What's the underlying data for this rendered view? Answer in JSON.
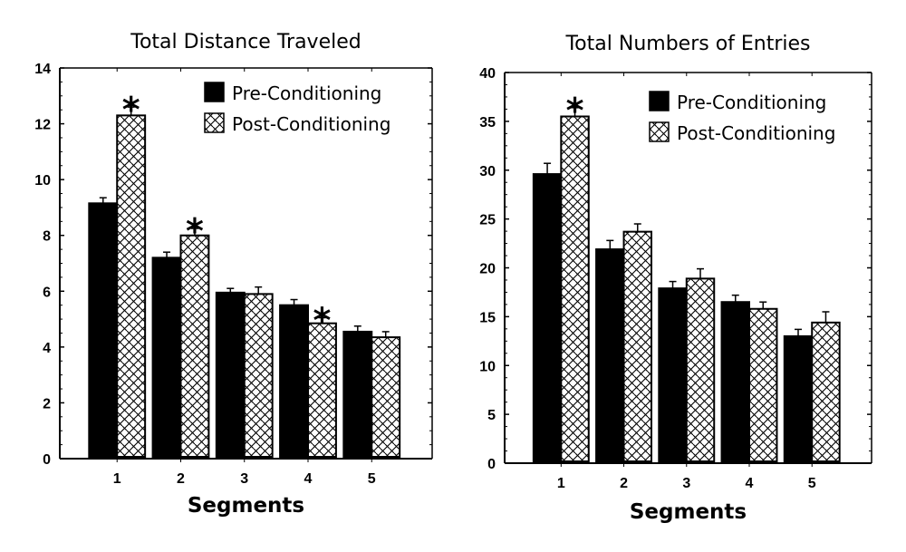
{
  "chart_data": [
    {
      "type": "bar",
      "title": "Total Distance Traveled",
      "xlabel": "Segments",
      "ylabel": "",
      "ylim": [
        0,
        14
      ],
      "yticks": [
        "0",
        "2",
        "4",
        "6",
        "8",
        "10",
        "12",
        "14"
      ],
      "categories": [
        "1",
        "2",
        "3",
        "4",
        "5"
      ],
      "legend_position": "top-right",
      "series": [
        {
          "name": "Pre-Conditioning",
          "fill": "solid",
          "values": [
            9.15,
            7.2,
            5.95,
            5.5,
            4.55
          ],
          "errors": [
            0.2,
            0.2,
            0.15,
            0.2,
            0.2
          ]
        },
        {
          "name": "Post-Conditioning",
          "fill": "hatched",
          "values": [
            12.3,
            8.0,
            5.9,
            4.85,
            4.35
          ],
          "errors": [
            0.3,
            0.25,
            0.25,
            0.2,
            0.2
          ]
        }
      ],
      "significance": [
        {
          "category": "1",
          "series": "Post-Conditioning",
          "marker": "*"
        },
        {
          "category": "2",
          "series": "Post-Conditioning",
          "marker": "*"
        },
        {
          "category": "4",
          "series": "Post-Conditioning",
          "marker": "*"
        }
      ]
    },
    {
      "type": "bar",
      "title": "Total Numbers of Entries",
      "xlabel": "Segments",
      "ylabel": "",
      "ylim": [
        0,
        40
      ],
      "yticks": [
        "0",
        "5",
        "10",
        "15",
        "20",
        "25",
        "30",
        "35",
        "40"
      ],
      "categories": [
        "1",
        "2",
        "3",
        "4",
        "5"
      ],
      "legend_position": "top-right",
      "series": [
        {
          "name": "Pre-Conditioning",
          "fill": "solid",
          "values": [
            29.6,
            21.9,
            17.9,
            16.5,
            13.0
          ],
          "errors": [
            1.1,
            0.9,
            0.7,
            0.7,
            0.7
          ]
        },
        {
          "name": "Post-Conditioning",
          "fill": "hatched",
          "values": [
            35.5,
            23.7,
            18.9,
            15.8,
            14.4
          ],
          "errors": [
            0.9,
            0.8,
            1.0,
            0.7,
            1.1
          ]
        }
      ],
      "significance": [
        {
          "category": "1",
          "series": "Post-Conditioning",
          "marker": "*"
        }
      ]
    }
  ],
  "colors": {
    "bar_fill": "#000000",
    "hatch": "#000000",
    "background": "#ffffff"
  }
}
